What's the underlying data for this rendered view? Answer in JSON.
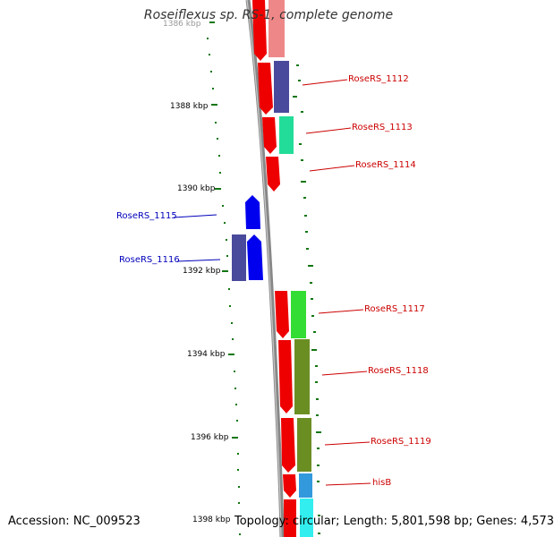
{
  "title": "Roseiflexus sp. RS-1, complete genome",
  "accession": "Accession: NC_009523",
  "topology": "Topology: circular; Length: 5,801,598 bp; Genes: 4,573",
  "ticks": {
    "t1386": "1386 kbp",
    "t1388": "1388 kbp",
    "t1390": "1390 kbp",
    "t1392": "1392 kbp",
    "t1394": "1394 kbp",
    "t1396": "1396 kbp",
    "t1398": "1398 kbp"
  },
  "genes": {
    "g1112": "RoseRS_1112",
    "g1113": "RoseRS_1113",
    "g1114": "RoseRS_1114",
    "g1115": "RoseRS_1115",
    "g1116": "RoseRS_1116",
    "g1117": "RoseRS_1117",
    "g1118": "RoseRS_1118",
    "g1119": "RoseRS_1119",
    "hisB": "hisB"
  },
  "colors": {
    "backbone": "#888888",
    "forward_strand_gene": "#ee0000",
    "reverse_strand_gene": "#0000ee",
    "cog_navy": "#4a4a9c",
    "cog_teal": "#22dd99",
    "cog_green": "#33dd33",
    "cog_olive": "#6b8e23",
    "cog_steelblue": "#3399dd",
    "cog_cyan": "#33eeee",
    "cog_pink": "#ee8888",
    "ticks": "#117711"
  }
}
